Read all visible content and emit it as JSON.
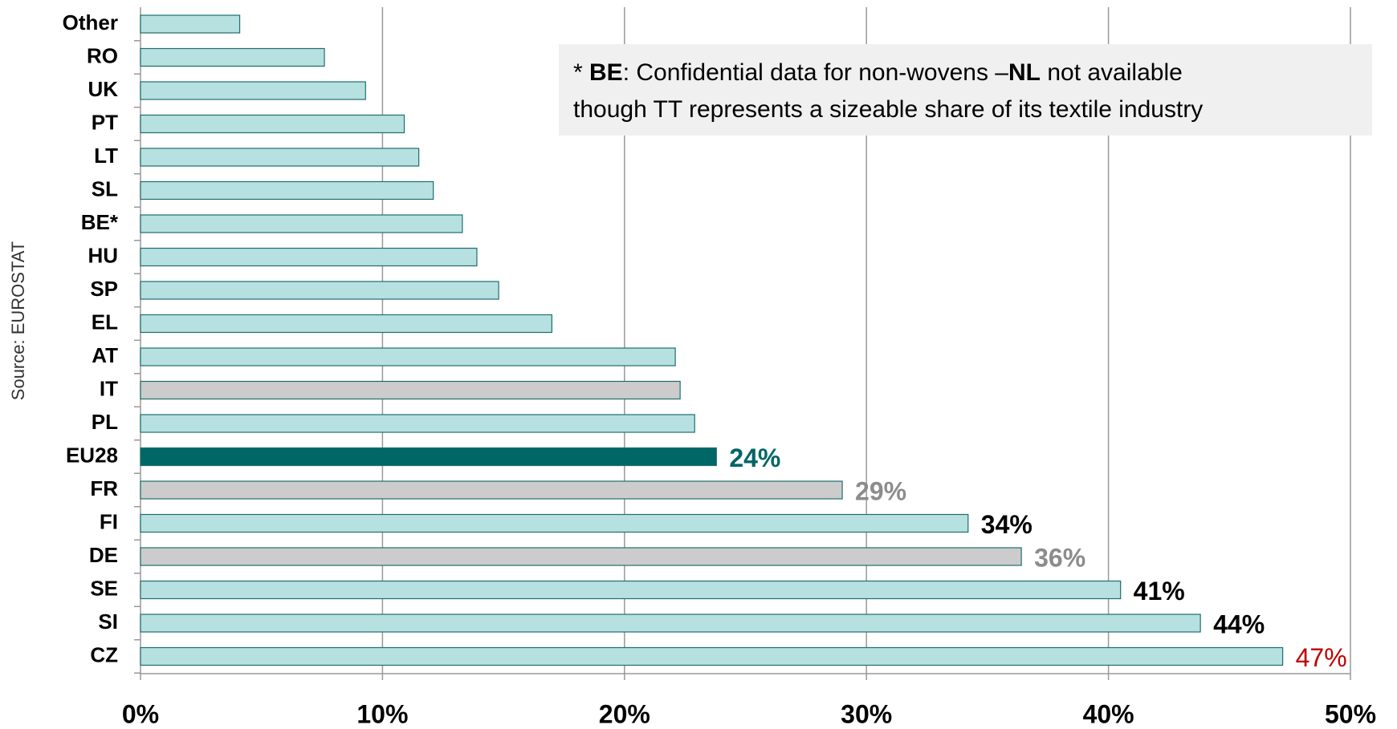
{
  "chart_data": {
    "type": "hbar",
    "source": "Source: EUROSTAT",
    "note": [
      [
        {
          "text": "* ",
          "bold": false
        },
        {
          "text": "BE",
          "bold": true
        },
        {
          "text": ": Confidential data for non-wovens –",
          "bold": false
        },
        {
          "text": "NL",
          "bold": true
        },
        {
          "text": " not available",
          "bold": false
        }
      ],
      [
        {
          "text": "though TT represents a sizeable share of its textile industry",
          "bold": false
        }
      ]
    ],
    "categories": [
      "Other",
      "RO",
      "UK",
      "PT",
      "LT",
      "SL",
      "BE*",
      "HU",
      "SP",
      "EL",
      "AT",
      "IT",
      "PL",
      "EU28",
      "FR",
      "FI",
      "DE",
      "SE",
      "SI",
      "CZ"
    ],
    "values": [
      4.1,
      7.6,
      9.3,
      10.9,
      11.5,
      12.1,
      13.3,
      13.9,
      14.8,
      17.0,
      22.1,
      22.3,
      22.9,
      23.8,
      29.0,
      34.2,
      36.4,
      40.5,
      43.8,
      47.2
    ],
    "value_labels": [
      null,
      null,
      null,
      null,
      null,
      null,
      null,
      null,
      null,
      null,
      null,
      null,
      null,
      "24%",
      "29%",
      "34%",
      "36%",
      "41%",
      "44%",
      "47%"
    ],
    "colors": [
      "#b7e0e0",
      "#b7e0e0",
      "#b7e0e0",
      "#b7e0e0",
      "#b7e0e0",
      "#b7e0e0",
      "#b7e0e0",
      "#b7e0e0",
      "#b7e0e0",
      "#b7e0e0",
      "#b7e0e0",
      "#cccccc",
      "#b7e0e0",
      "#006666",
      "#cccccc",
      "#b7e0e0",
      "#cccccc",
      "#b7e0e0",
      "#b7e0e0",
      "#b7e0e0"
    ],
    "label_colors": [
      null,
      null,
      null,
      null,
      null,
      null,
      null,
      null,
      null,
      null,
      null,
      null,
      null,
      "#006666",
      "#8c8c8c",
      "#000000",
      "#8c8c8c",
      "#000000",
      "#000000",
      "#c00000"
    ],
    "xlim": [
      0,
      50
    ],
    "xticks": [
      {
        "value": 0,
        "label": "0%"
      },
      {
        "value": 10,
        "label": "10%"
      },
      {
        "value": 20,
        "label": "20%"
      },
      {
        "value": 30,
        "label": "30%"
      },
      {
        "value": 40,
        "label": "40%"
      },
      {
        "value": 50,
        "label": "50%"
      }
    ],
    "grid": true
  }
}
